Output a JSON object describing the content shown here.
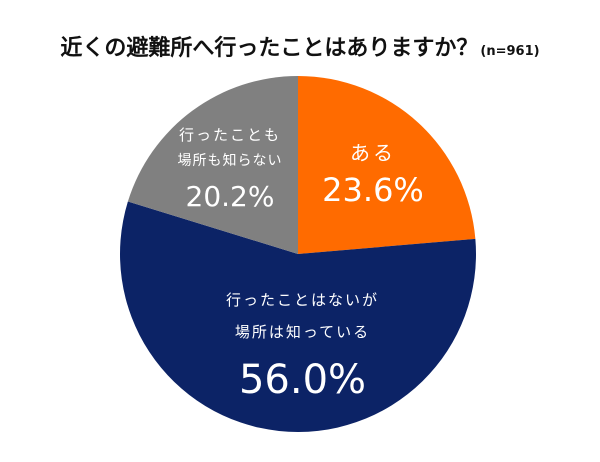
{
  "title": {
    "main": "近くの避難所へ行ったことはありますか？",
    "sample": "(n=961)"
  },
  "colors": {
    "aru": "#FF6B00",
    "known": "#0C2366",
    "unknown": "#808080"
  },
  "labels": {
    "aru": {
      "line1": "ある",
      "pct": "23.6%"
    },
    "known": {
      "line1": "行ったことはないが",
      "line2": "場所は知っている",
      "pct": "56.0%"
    },
    "unknown": {
      "line1": "行ったことも",
      "line2": "場所も知らない",
      "pct": "20.2%"
    }
  },
  "chart_data": {
    "type": "pie",
    "title": "近くの避難所へ行ったことはありますか？ (n=961)",
    "categories": [
      "ある",
      "行ったことはないが場所は知っている",
      "行ったことも場所も知らない"
    ],
    "values": [
      23.6,
      56.0,
      20.2
    ],
    "unit": "%",
    "colors": [
      "#FF6B00",
      "#0C2366",
      "#808080"
    ],
    "start_angle": "12 o'clock, clockwise",
    "legend": "none (labels inside slices)"
  }
}
